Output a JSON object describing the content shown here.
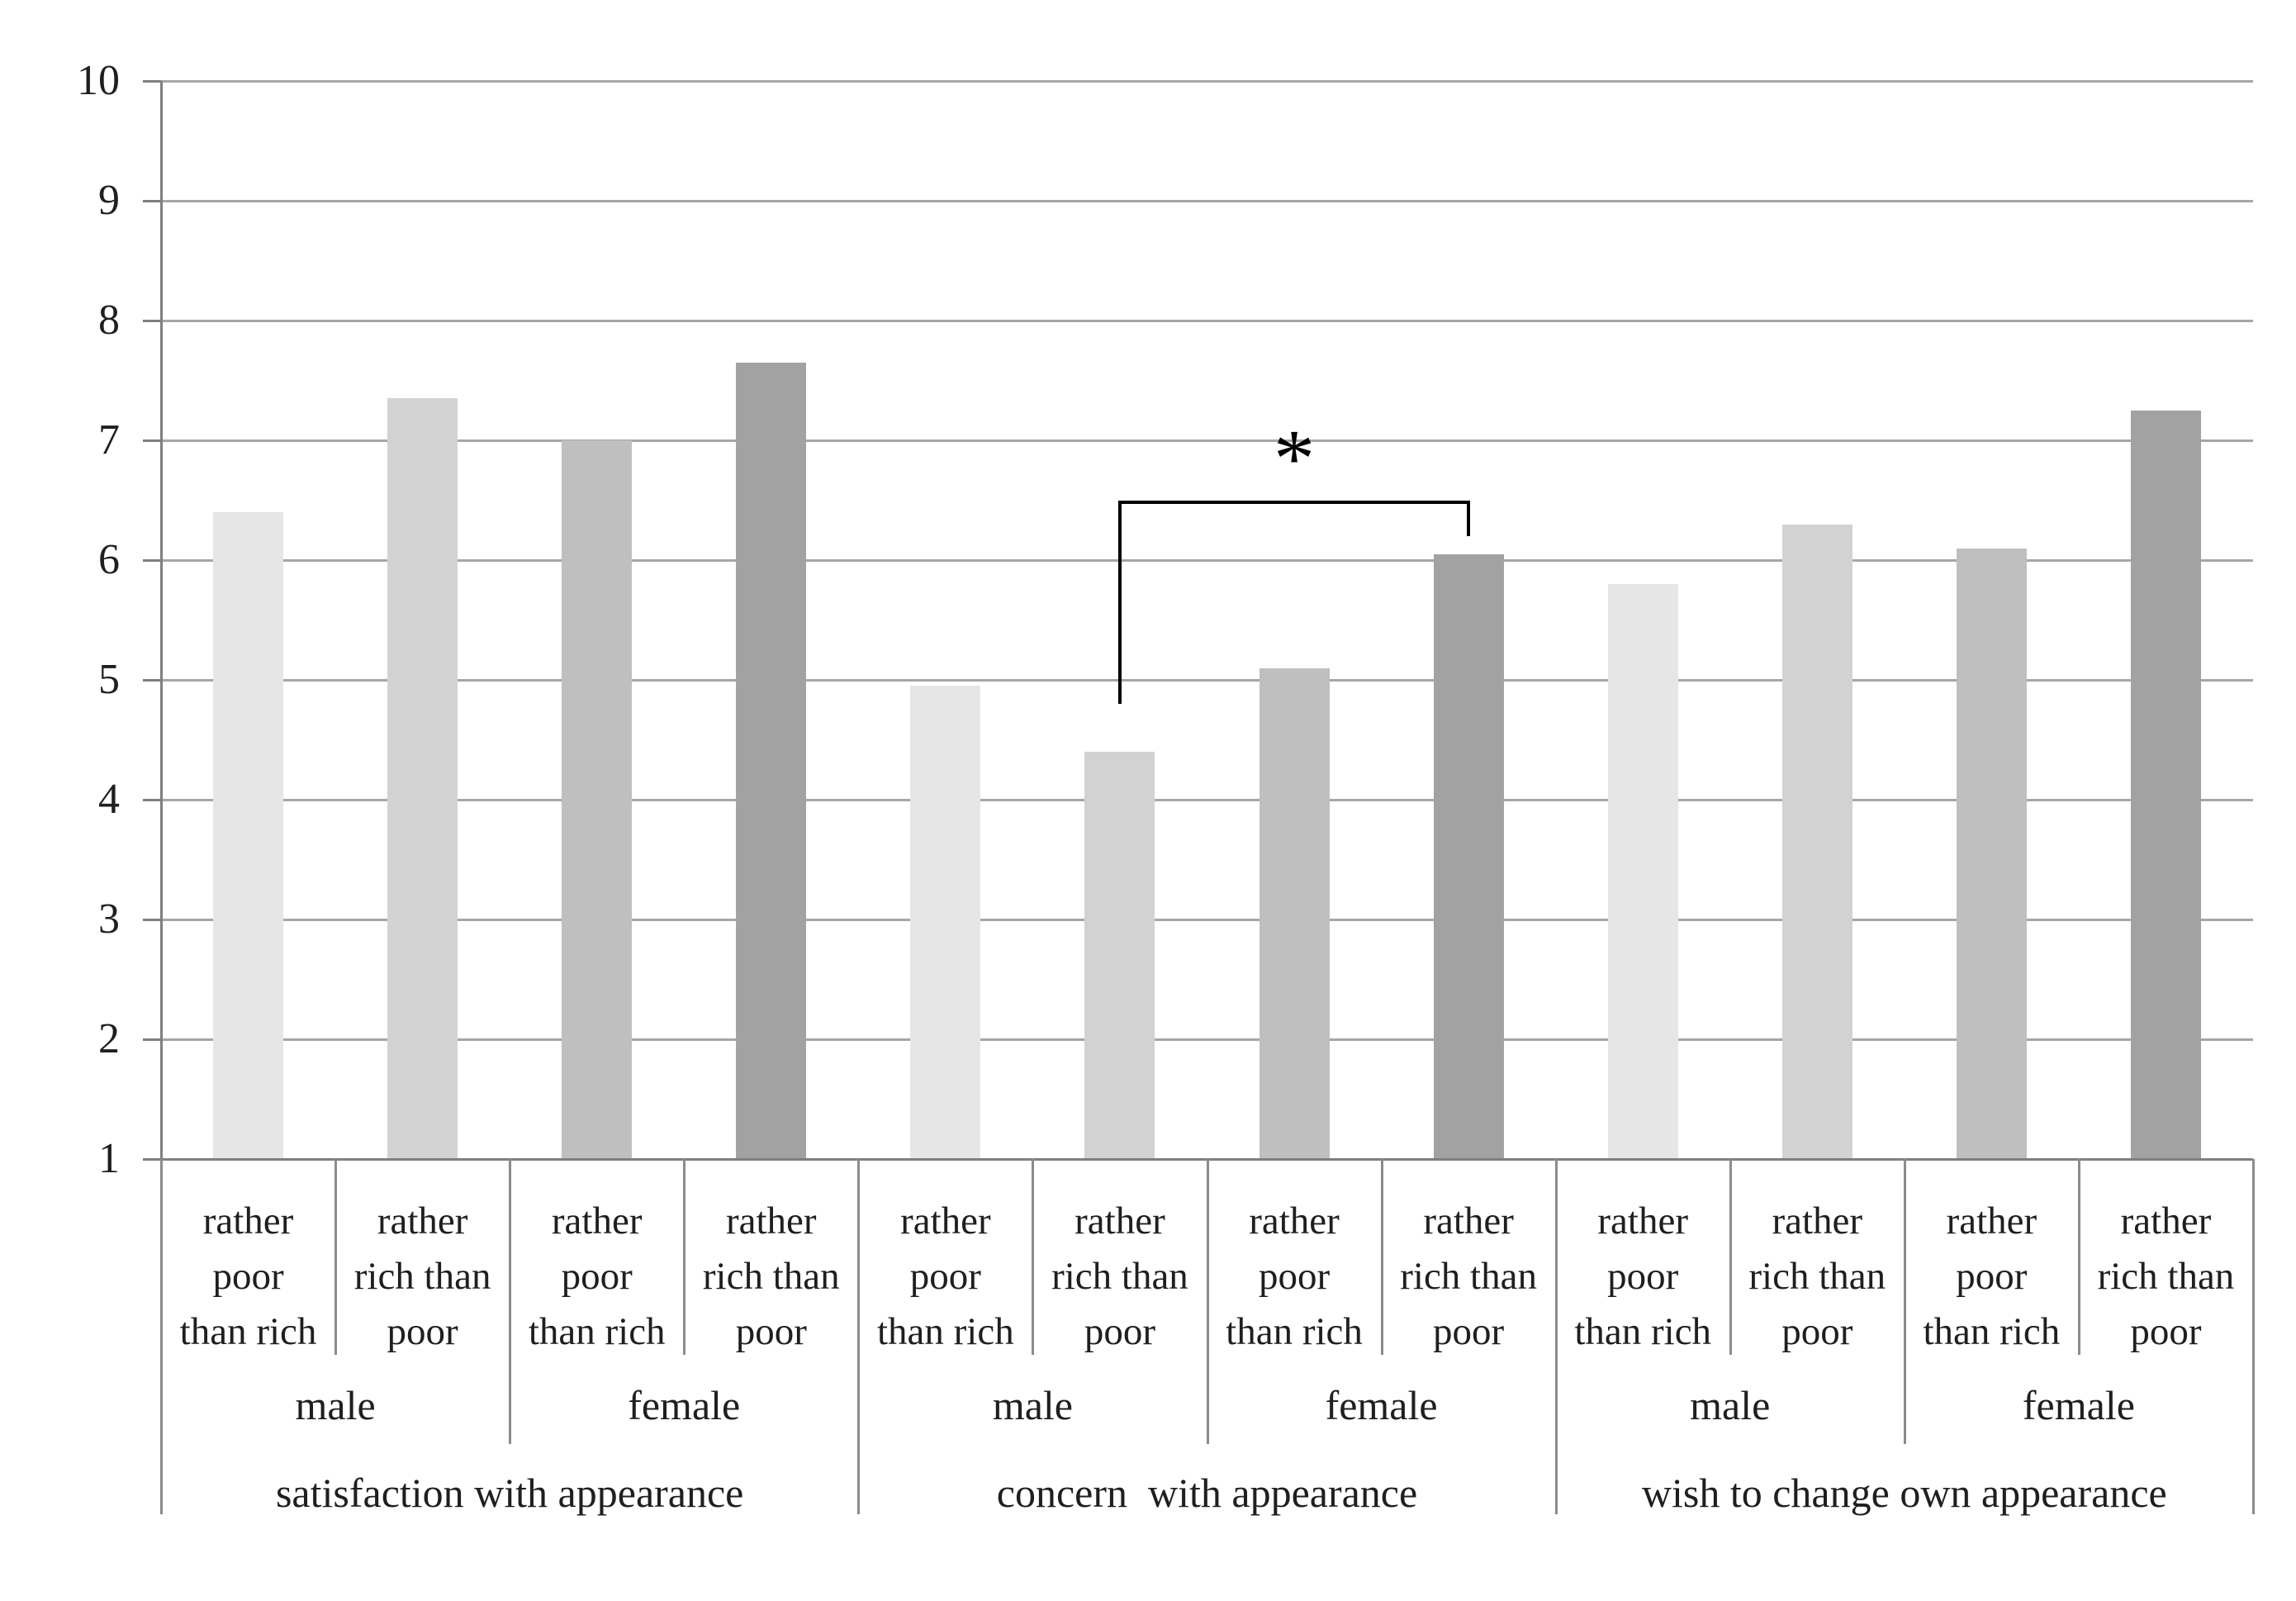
{
  "chart_data": {
    "type": "bar",
    "title": "",
    "xlabel": "",
    "ylabel": "",
    "ylim": [
      1,
      10
    ],
    "yticks": [
      1,
      2,
      3,
      4,
      5,
      6,
      7,
      8,
      9,
      10
    ],
    "grid": "horizontal",
    "legend": "none",
    "bar_label_variants": {
      "poor_lines": [
        "rather",
        "poor",
        "than rich"
      ],
      "rich_lines": [
        "rather",
        "rich than",
        "poor"
      ]
    },
    "groups": [
      {
        "label": "satisfaction with appearance",
        "subgroups": [
          {
            "label": "male",
            "bars": [
              {
                "label": "rather poor than rich",
                "value": 6.4
              },
              {
                "label": "rather rich than poor",
                "value": 7.35
              }
            ]
          },
          {
            "label": "female",
            "bars": [
              {
                "label": "rather poor than rich",
                "value": 7.0
              },
              {
                "label": "rather rich than poor",
                "value": 7.65
              }
            ]
          }
        ]
      },
      {
        "label": "concern  with appearance",
        "subgroups": [
          {
            "label": "male",
            "bars": [
              {
                "label": "rather poor than rich",
                "value": 4.95
              },
              {
                "label": "rather rich than poor",
                "value": 4.4
              }
            ]
          },
          {
            "label": "female",
            "bars": [
              {
                "label": "rather poor than rich",
                "value": 5.1
              },
              {
                "label": "rather rich than poor",
                "value": 6.05
              }
            ]
          }
        ]
      },
      {
        "label": "wish to change own appearance",
        "subgroups": [
          {
            "label": "male",
            "bars": [
              {
                "label": "rather poor than rich",
                "value": 5.8
              },
              {
                "label": "rather rich than poor",
                "value": 6.3
              }
            ]
          },
          {
            "label": "female",
            "bars": [
              {
                "label": "rather poor than rich",
                "value": 6.1
              },
              {
                "label": "rather rich than poor",
                "value": 7.25
              }
            ]
          }
        ]
      }
    ],
    "significance": {
      "symbol": "*",
      "from_bar_index": 5,
      "to_bar_index": 7,
      "from_label": "concern with appearance / male / rather rich than poor",
      "to_label": "concern with appearance / female / rather rich than poor",
      "bracket_top_value": 6.5,
      "from_leg_bottom_value": 4.8,
      "to_leg_bottom_value": 6.2
    },
    "colors": {
      "bar_shades": [
        "#e6e6e6",
        "#d2d2d2",
        "#bfbfbf",
        "#a2a2a2"
      ],
      "gridline": "#a6a6a6",
      "axis": "#7f7f7f",
      "table_border": "#8c8c8c",
      "text": "#1f1f1f",
      "bracket": "#000000",
      "background": "#ffffff"
    }
  }
}
